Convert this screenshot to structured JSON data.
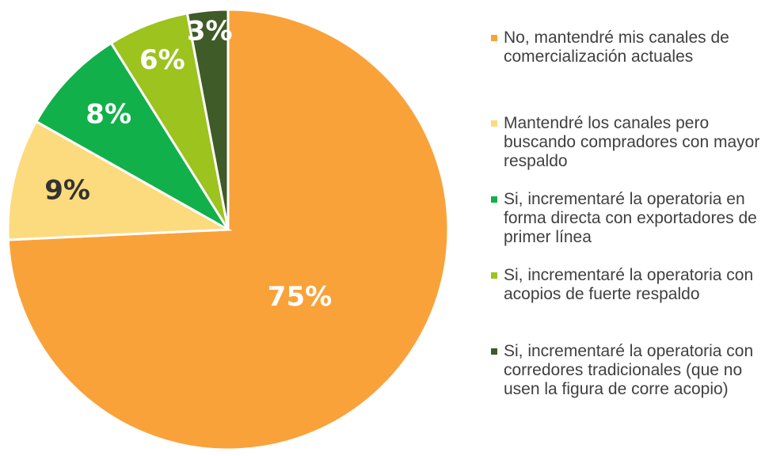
{
  "chart_data": {
    "type": "pie",
    "categories": [
      "No, mantendré mis canales de comercialización actuales",
      "Mantendré los canales pero buscando compradores con mayor respaldo",
      "Si, incrementaré la operatoria en forma directa con exportadores de primer línea",
      "Si, incrementaré la operatoria con acopios de fuerte respaldo",
      "Si, incrementaré la operatoria con corredores tradicionales (que no usen la figura de corre acopio)"
    ],
    "values": [
      75,
      9,
      8,
      6,
      3
    ],
    "value_labels": [
      "75%",
      "9%",
      "8%",
      "6%",
      "3%"
    ],
    "colors": [
      "#F9A23A",
      "#FCDB7E",
      "#12B04B",
      "#9CC31E",
      "#3F5B27"
    ]
  }
}
